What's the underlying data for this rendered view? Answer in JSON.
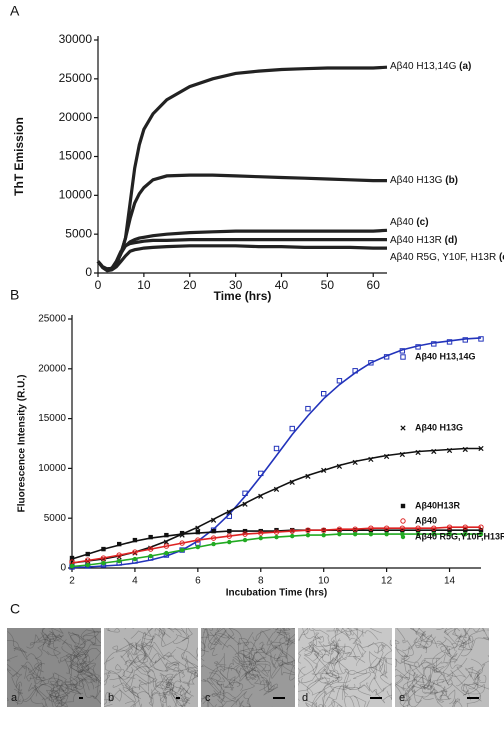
{
  "panels": [
    "A",
    "B",
    "C"
  ],
  "chart_data": [
    {
      "type": "line",
      "xlabel": "Time (hrs)",
      "ylabel": "ThT Emission",
      "xlim": [
        0,
        63
      ],
      "ylim": [
        0,
        30000
      ],
      "xticks": [
        0,
        10,
        20,
        30,
        40,
        50,
        60
      ],
      "yticks": [
        0,
        5000,
        10000,
        15000,
        20000,
        25000,
        30000
      ],
      "x": [
        0,
        1,
        2,
        3,
        4,
        5,
        6,
        7,
        8,
        9,
        10,
        12,
        15,
        20,
        25,
        30,
        35,
        40,
        45,
        50,
        55,
        60,
        63
      ],
      "series": [
        {
          "name": "Aβ40 H13,14G",
          "letter": "(a)",
          "color": "#222222",
          "values": [
            1500,
            800,
            500,
            600,
            1200,
            2500,
            4500,
            9000,
            13500,
            16500,
            18500,
            20500,
            22300,
            24000,
            25000,
            25700,
            26000,
            26200,
            26300,
            26400,
            26400,
            26400,
            26500
          ]
        },
        {
          "name": "Aβ40 H13G",
          "letter": "(b)",
          "color": "#222222",
          "values": [
            1500,
            800,
            500,
            600,
            1200,
            2500,
            4500,
            7000,
            9000,
            10200,
            11000,
            12000,
            12500,
            12600,
            12600,
            12500,
            12400,
            12300,
            12200,
            12100,
            12000,
            11900,
            11900
          ]
        },
        {
          "name": "Aβ40",
          "letter": "(c)",
          "color": "#222222",
          "values": [
            1500,
            800,
            500,
            600,
            1200,
            2500,
            3500,
            4000,
            4300,
            4500,
            4600,
            4800,
            5000,
            5200,
            5300,
            5400,
            5400,
            5400,
            5400,
            5400,
            5400,
            5400,
            5500
          ]
        },
        {
          "name": "Aβ40 H13R",
          "letter": "(d)",
          "color": "#222222",
          "values": [
            1500,
            800,
            500,
            600,
            1500,
            2800,
            3500,
            3800,
            3900,
            4000,
            4100,
            4200,
            4200,
            4300,
            4300,
            4300,
            4300,
            4300,
            4300,
            4300,
            4300,
            4300,
            4300
          ]
        },
        {
          "name": "Aβ40 R5G, Y10F, H13R",
          "letter": "(e)",
          "color": "#222222",
          "values": [
            1500,
            700,
            300,
            400,
            800,
            1500,
            2200,
            2800,
            3000,
            3100,
            3200,
            3300,
            3400,
            3500,
            3500,
            3500,
            3400,
            3400,
            3300,
            3300,
            3300,
            3200,
            3200
          ]
        }
      ]
    },
    {
      "type": "scatter",
      "xlabel": "Incubation Time (hrs)",
      "ylabel": "Fluorescence Intensity (R.U.)",
      "xlim": [
        2,
        15
      ],
      "ylim": [
        0,
        25000
      ],
      "xticks": [
        2,
        4,
        6,
        8,
        10,
        12,
        14
      ],
      "yticks": [
        0,
        5000,
        10000,
        15000,
        20000,
        25000
      ],
      "x": [
        2,
        2.5,
        3,
        3.5,
        4,
        4.5,
        5,
        5.5,
        6,
        6.5,
        7,
        7.5,
        8,
        8.5,
        9,
        9.5,
        10,
        10.5,
        11,
        11.5,
        12,
        12.5,
        13,
        13.5,
        14,
        14.5,
        15
      ],
      "series": [
        {
          "name": "Aβ40 H13,14G",
          "color": "#2233bb",
          "marker": "open-square",
          "values": [
            100,
            200,
            300,
            500,
            700,
            1000,
            1300,
            1800,
            2500,
            3800,
            5200,
            7500,
            9500,
            12000,
            14000,
            16000,
            17500,
            18800,
            19800,
            20600,
            21200,
            21800,
            22200,
            22500,
            22700,
            22900,
            23000
          ],
          "fit": [
            50,
            100,
            200,
            300,
            500,
            800,
            1200,
            1800,
            2700,
            3900,
            5400,
            7200,
            9200,
            11300,
            13400,
            15300,
            17000,
            18400,
            19600,
            20600,
            21300,
            21900,
            22300,
            22600,
            22800,
            23000,
            23100
          ]
        },
        {
          "name": "Aβ40 H13G",
          "color": "#111111",
          "marker": "cross",
          "values": [
            600,
            700,
            900,
            1100,
            1500,
            2000,
            2600,
            3300,
            4000,
            4800,
            5600,
            6400,
            7200,
            7900,
            8600,
            9200,
            9800,
            10200,
            10600,
            10900,
            11200,
            11400,
            11600,
            11700,
            11800,
            11900,
            12000
          ],
          "fit": [
            500,
            700,
            900,
            1200,
            1600,
            2100,
            2700,
            3400,
            4100,
            4900,
            5700,
            6500,
            7300,
            8000,
            8700,
            9300,
            9800,
            10300,
            10700,
            11000,
            11300,
            11500,
            11700,
            11800,
            11900,
            12000,
            12000
          ]
        },
        {
          "name": "Aβ40H13R",
          "color": "#111111",
          "marker": "filled-square",
          "values": [
            1000,
            1400,
            1900,
            2400,
            2800,
            3100,
            3300,
            3500,
            3600,
            3700,
            3700,
            3700,
            3700,
            3800,
            3800,
            3800,
            3800,
            3800,
            3800,
            3800,
            3800,
            3800,
            3800,
            3800,
            3800,
            3800,
            3800
          ],
          "fit": [
            900,
            1400,
            1900,
            2300,
            2700,
            3000,
            3200,
            3400,
            3500,
            3600,
            3700,
            3700,
            3700,
            3700,
            3800,
            3800,
            3800,
            3800,
            3800,
            3800,
            3800,
            3800,
            3800,
            3800,
            3800,
            3800,
            3800
          ]
        },
        {
          "name": "Aβ40",
          "color": "#dd2222",
          "marker": "open-circle",
          "values": [
            600,
            800,
            1000,
            1300,
            1600,
            1900,
            2200,
            2500,
            2800,
            3000,
            3200,
            3400,
            3500,
            3600,
            3700,
            3800,
            3800,
            3900,
            3900,
            4000,
            4000,
            4000,
            4000,
            4000,
            4100,
            4100,
            4100
          ],
          "fit": [
            500,
            750,
            1000,
            1300,
            1600,
            1900,
            2200,
            2500,
            2800,
            3000,
            3200,
            3400,
            3500,
            3600,
            3700,
            3800,
            3800,
            3900,
            3900,
            4000,
            4000,
            4000,
            4000,
            4000,
            4100,
            4100,
            4100
          ]
        },
        {
          "name": "Aβ40 R5G,Y10F,H13R",
          "color": "#22aa22",
          "marker": "filled-circle",
          "values": [
            200,
            300,
            500,
            700,
            900,
            1200,
            1500,
            1800,
            2100,
            2400,
            2600,
            2800,
            3000,
            3100,
            3200,
            3300,
            3300,
            3400,
            3400,
            3400,
            3400,
            3400,
            3400,
            3400,
            3400,
            3400,
            3400
          ],
          "fit": [
            150,
            300,
            500,
            700,
            950,
            1200,
            1500,
            1800,
            2100,
            2400,
            2600,
            2800,
            3000,
            3100,
            3200,
            3300,
            3300,
            3400,
            3400,
            3400,
            3400,
            3400,
            3400,
            3400,
            3400,
            3400,
            3400
          ]
        }
      ]
    }
  ],
  "micrographs": [
    "a",
    "b",
    "c",
    "d",
    "e"
  ]
}
